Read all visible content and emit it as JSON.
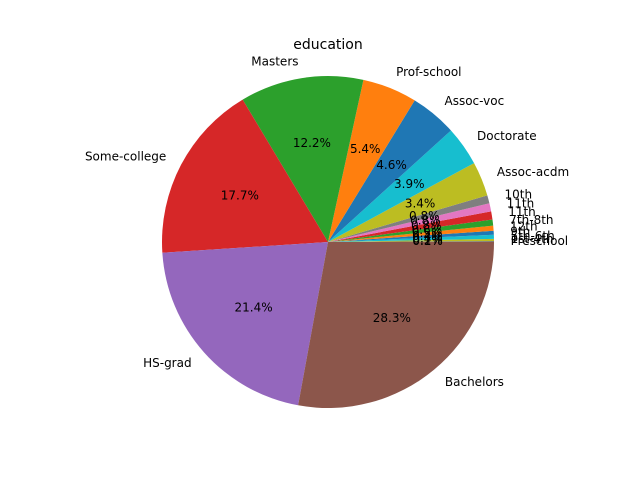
{
  "chart_data": {
    "type": "pie",
    "title": "education",
    "start_angle_deg": 0,
    "direction": "counterclockwise",
    "slices": [
      {
        "label": "Preschool",
        "value": 0.1,
        "pct_label": "0.1%",
        "color": "#7f7f7f"
      },
      {
        "label": "1st-4th",
        "value": 0.2,
        "pct_label": "0.2%",
        "color": "#bcbd22"
      },
      {
        "label": "5th-6th",
        "value": 0.4,
        "pct_label": "0.4%",
        "color": "#17becf"
      },
      {
        "label": "9th",
        "value": 0.4,
        "pct_label": "0.4%",
        "color": "#1f77b4"
      },
      {
        "label": "12th",
        "value": 0.5,
        "pct_label": "0.5%",
        "color": "#ff7f0e"
      },
      {
        "label": "7th-8th",
        "value": 0.6,
        "pct_label": "0.6%",
        "color": "#2ca02c"
      },
      {
        "label": "11th",
        "value": 0.8,
        "pct_label": "0.8%",
        "color": "#d62728"
      },
      {
        "label": "11th",
        "value": 0.8,
        "pct_label": "0.8%",
        "color": "#e377c2"
      },
      {
        "label": "10th",
        "value": 0.8,
        "pct_label": "0.8%",
        "color": "#7f7f7f"
      },
      {
        "label": "Assoc-acdm",
        "value": 3.4,
        "pct_label": "3.4%",
        "color": "#bcbd22"
      },
      {
        "label": "Doctorate",
        "value": 3.9,
        "pct_label": "3.9%",
        "color": "#17becf"
      },
      {
        "label": "Assoc-voc",
        "value": 4.6,
        "pct_label": "4.6%",
        "color": "#1f77b4"
      },
      {
        "label": "Prof-school",
        "value": 5.4,
        "pct_label": "5.4%",
        "color": "#ff7f0e"
      },
      {
        "label": "Masters",
        "value": 12.2,
        "pct_label": "12.2%",
        "color": "#2ca02c"
      },
      {
        "label": "Some-college",
        "value": 17.7,
        "pct_label": "17.7%",
        "color": "#d62728"
      },
      {
        "label": "HS-grad",
        "value": 21.4,
        "pct_label": "21.4%",
        "color": "#9467bd"
      },
      {
        "label": "Bachelors",
        "value": 28.3,
        "pct_label": "28.3%",
        "color": "#8c564b"
      }
    ]
  }
}
